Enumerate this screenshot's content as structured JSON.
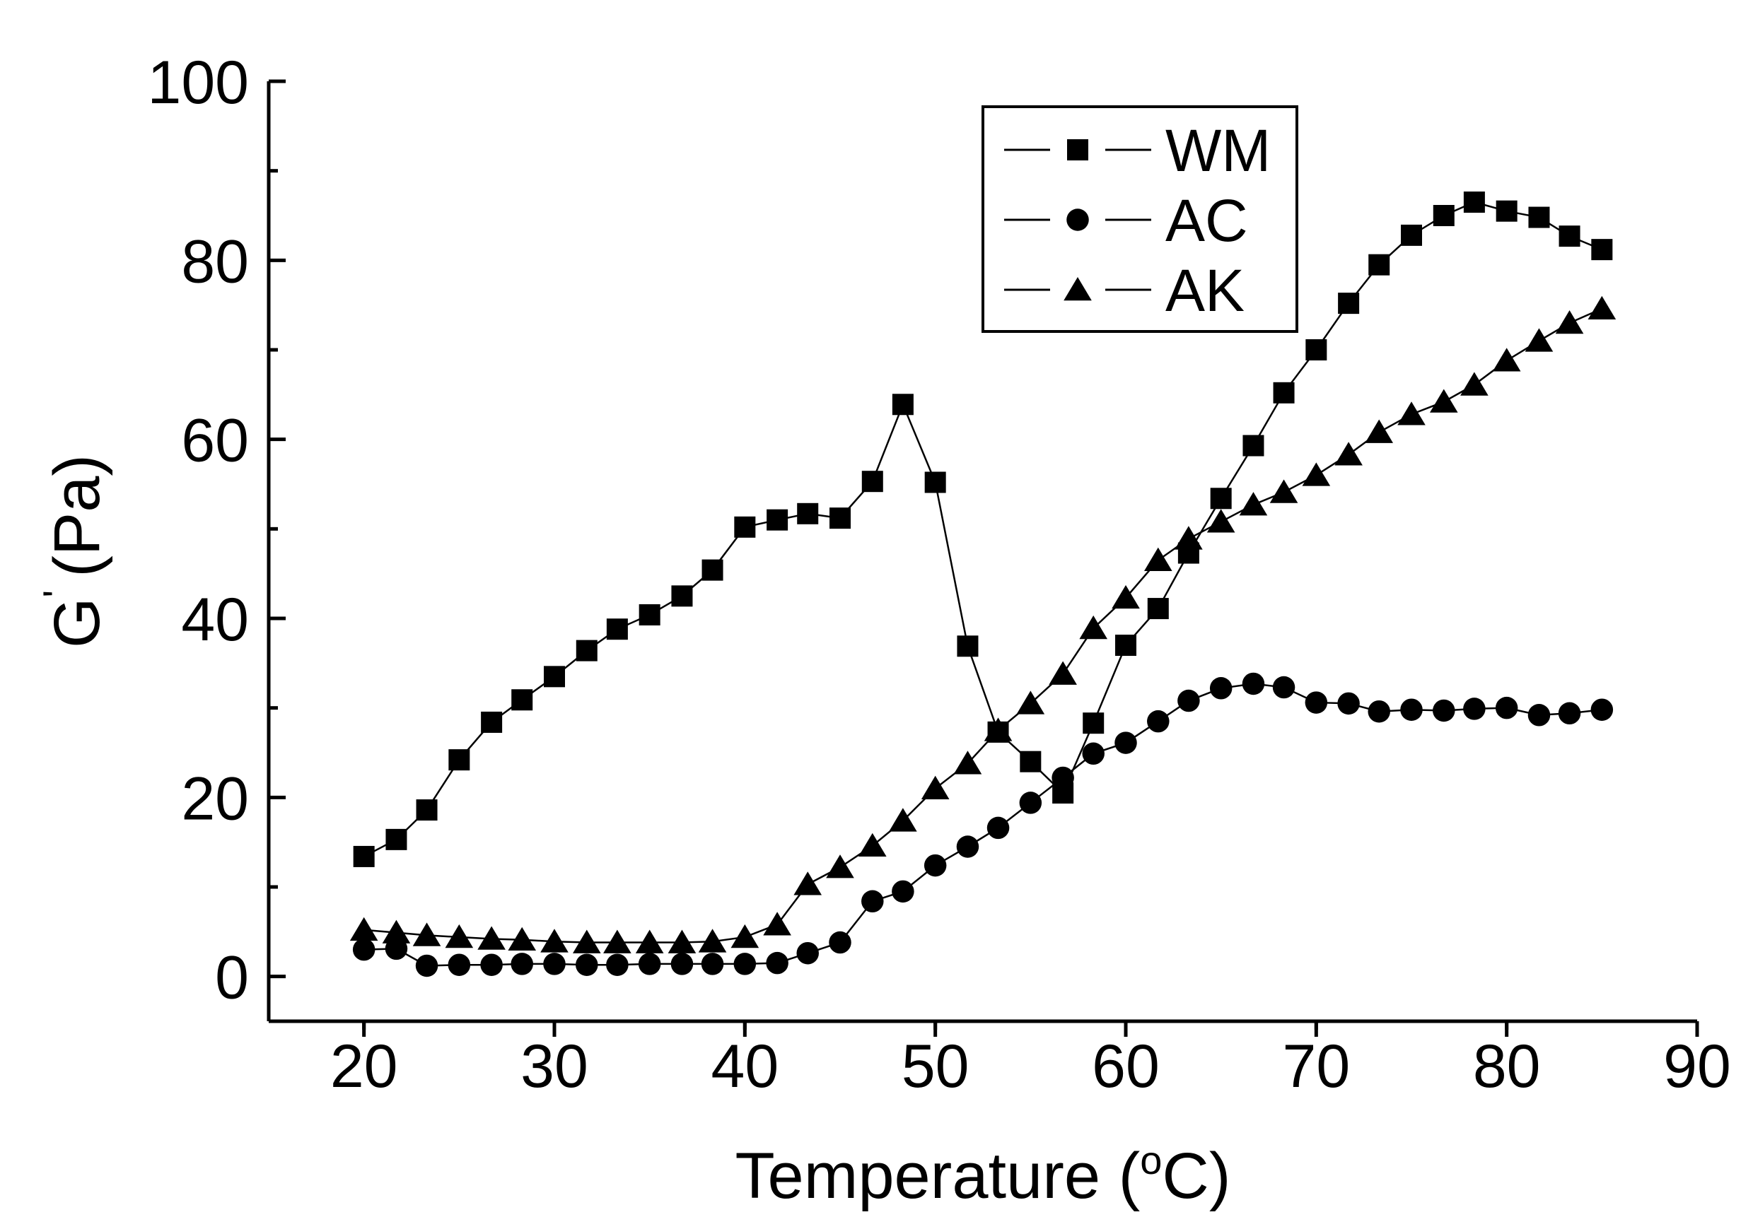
{
  "chart_data": {
    "type": "line",
    "xlabel": "Temperature (",
    "xlabel_sup": "o",
    "xlabel_unit": "C)",
    "ylabel_main": "G",
    "ylabel_sup": "'",
    "ylabel_unit": "(Pa)",
    "xlim": [
      15,
      90
    ],
    "ylim": [
      -5,
      100
    ],
    "xticks": [
      20,
      30,
      40,
      50,
      60,
      70,
      80,
      90
    ],
    "yticks": [
      0,
      20,
      40,
      60,
      80,
      100
    ],
    "legend_position": "top-right",
    "series": [
      {
        "name": "WM",
        "marker": "square",
        "x": [
          20,
          21.7,
          23.3,
          25,
          26.7,
          28.3,
          30,
          31.7,
          33.3,
          35,
          36.7,
          38.3,
          40,
          41.7,
          43.3,
          45,
          46.7,
          48.3,
          50,
          51.7,
          53.3,
          55,
          56.7,
          58.3,
          60,
          61.7,
          63.3,
          65,
          66.7,
          68.3,
          70,
          71.7,
          73.3,
          75,
          76.7,
          78.3,
          80,
          81.7,
          83.3,
          85
        ],
        "values": [
          13.4,
          15.3,
          18.6,
          24.2,
          28.4,
          30.9,
          33.5,
          36.4,
          38.8,
          40.4,
          42.5,
          45.4,
          50.2,
          51,
          51.7,
          51.2,
          55.3,
          63.9,
          55.2,
          36.9,
          27.3,
          24,
          20.5,
          28.3,
          37,
          41.1,
          47.3,
          53.4,
          59.3,
          65.2,
          70,
          75.2,
          79.5,
          82.8,
          85,
          86.5,
          85.5,
          84.8,
          82.7,
          81.2
        ]
      },
      {
        "name": "AC",
        "marker": "circle",
        "x": [
          20,
          21.7,
          23.3,
          25,
          26.7,
          28.3,
          30,
          31.7,
          33.3,
          35,
          36.7,
          38.3,
          40,
          41.7,
          43.3,
          45,
          46.7,
          48.3,
          50,
          51.7,
          53.3,
          55,
          56.7,
          58.3,
          60,
          61.7,
          63.3,
          65,
          66.7,
          68.3,
          70,
          71.7,
          73.3,
          75,
          76.7,
          78.3,
          80,
          81.7,
          83.3,
          85
        ],
        "values": [
          3,
          3.1,
          1.2,
          1.3,
          1.3,
          1.4,
          1.4,
          1.3,
          1.3,
          1.4,
          1.4,
          1.4,
          1.4,
          1.5,
          2.6,
          3.8,
          8.4,
          9.5,
          12.4,
          14.5,
          16.6,
          19.4,
          22.2,
          24.9,
          26.1,
          28.5,
          30.8,
          32.2,
          32.7,
          32.3,
          30.6,
          30.5,
          29.6,
          29.8,
          29.7,
          29.9,
          30,
          29.2,
          29.4,
          29.8
        ]
      },
      {
        "name": "AK",
        "marker": "triangle",
        "x": [
          20,
          21.7,
          23.3,
          25,
          26.7,
          28.3,
          30,
          31.7,
          33.3,
          35,
          36.7,
          38.3,
          40,
          41.7,
          43.3,
          45,
          46.7,
          48.3,
          50,
          51.7,
          53.3,
          55,
          56.7,
          58.3,
          60,
          61.7,
          63.3,
          65,
          66.7,
          68.3,
          70,
          71.7,
          73.3,
          75,
          76.7,
          78.3,
          80,
          81.7,
          83.3,
          85
        ],
        "values": [
          5.2,
          4.9,
          4.6,
          4.4,
          4.2,
          4.1,
          3.9,
          3.8,
          3.8,
          3.8,
          3.8,
          3.9,
          4.4,
          5.8,
          10.3,
          12.2,
          14.6,
          17.4,
          21,
          23.8,
          27.5,
          30.5,
          33.8,
          38.9,
          42.3,
          46.5,
          48.9,
          50.8,
          52.7,
          54.1,
          56,
          58.3,
          60.8,
          62.8,
          64.2,
          66.1,
          68.8,
          71,
          73,
          74.6
        ]
      }
    ]
  }
}
